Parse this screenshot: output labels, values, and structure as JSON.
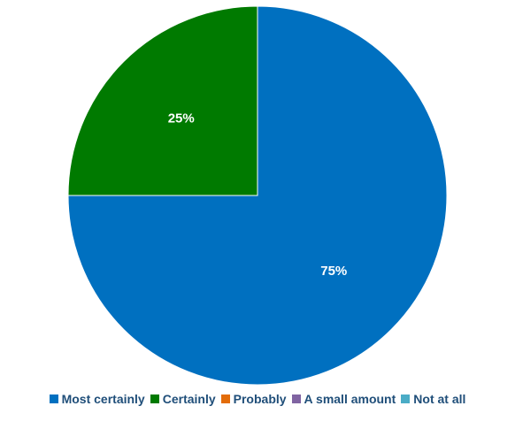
{
  "chart_data": {
    "type": "pie",
    "title": "",
    "categories": [
      "Most certainly",
      "Certainly",
      "Probably",
      "A small amount",
      "Not at all"
    ],
    "values": [
      75,
      25,
      0,
      0,
      0
    ],
    "data_labels": [
      "75%",
      "25%",
      "",
      "",
      ""
    ],
    "colors": [
      "#0070C0",
      "#007A00",
      "#E36C09",
      "#8064A2",
      "#4BACC6"
    ],
    "legend_position": "bottom",
    "start_angle_deg": 0,
    "direction": "clockwise"
  }
}
